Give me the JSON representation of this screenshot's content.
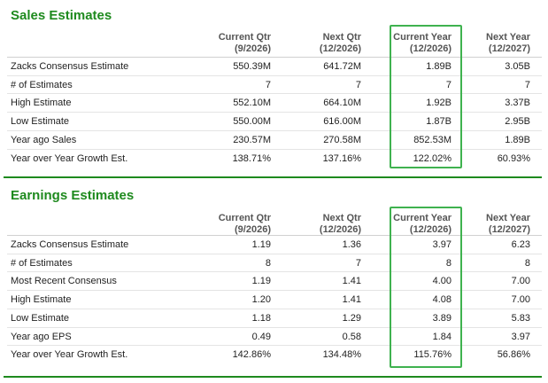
{
  "sales": {
    "title": "Sales Estimates",
    "headers": [
      {
        "line1": "Current Qtr",
        "line2": "(9/2026)"
      },
      {
        "line1": "Next Qtr",
        "line2": "(12/2026)"
      },
      {
        "line1": "Current Year",
        "line2": "(12/2026)"
      },
      {
        "line1": "Next Year",
        "line2": "(12/2027)"
      }
    ],
    "rows": [
      {
        "label": "Zacks Consensus Estimate",
        "values": [
          "550.39M",
          "641.72M",
          "1.89B",
          "3.05B"
        ]
      },
      {
        "label": "# of Estimates",
        "values": [
          "7",
          "7",
          "7",
          "7"
        ]
      },
      {
        "label": "High Estimate",
        "values": [
          "552.10M",
          "664.10M",
          "1.92B",
          "3.37B"
        ]
      },
      {
        "label": "Low Estimate",
        "values": [
          "550.00M",
          "616.00M",
          "1.87B",
          "2.95B"
        ]
      },
      {
        "label": "Year ago Sales",
        "values": [
          "230.57M",
          "270.58M",
          "852.53M",
          "1.89B"
        ]
      },
      {
        "label": "Year over Year Growth Est.",
        "values": [
          "138.71%",
          "137.16%",
          "122.02%",
          "60.93%"
        ]
      }
    ]
  },
  "earnings": {
    "title": "Earnings Estimates",
    "headers": [
      {
        "line1": "Current Qtr",
        "line2": "(9/2026)"
      },
      {
        "line1": "Next Qtr",
        "line2": "(12/2026)"
      },
      {
        "line1": "Current Year",
        "line2": "(12/2026)"
      },
      {
        "line1": "Next Year",
        "line2": "(12/2027)"
      }
    ],
    "rows": [
      {
        "label": "Zacks Consensus Estimate",
        "values": [
          "1.19",
          "1.36",
          "3.97",
          "6.23"
        ]
      },
      {
        "label": "# of Estimates",
        "values": [
          "8",
          "7",
          "8",
          "8"
        ]
      },
      {
        "label": "Most Recent Consensus",
        "values": [
          "1.19",
          "1.41",
          "4.00",
          "7.00"
        ]
      },
      {
        "label": "High Estimate",
        "values": [
          "1.20",
          "1.41",
          "4.08",
          "7.00"
        ]
      },
      {
        "label": "Low Estimate",
        "values": [
          "1.18",
          "1.29",
          "3.89",
          "5.83"
        ]
      },
      {
        "label": "Year ago EPS",
        "values": [
          "0.49",
          "0.58",
          "1.84",
          "3.97"
        ]
      },
      {
        "label": "Year over Year Growth Est.",
        "values": [
          "142.86%",
          "134.48%",
          "115.76%",
          "56.86%"
        ]
      }
    ]
  },
  "colors": {
    "accent": "#1e8a1e",
    "highlight_box": "#3fb24f"
  }
}
